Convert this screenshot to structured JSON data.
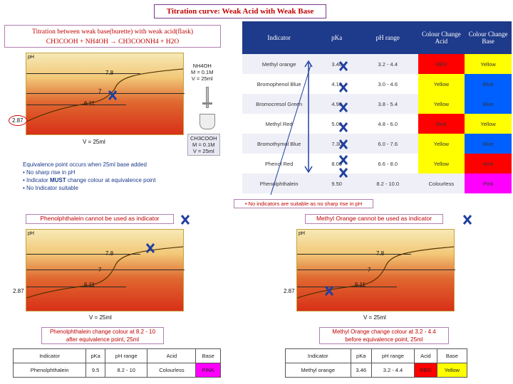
{
  "title": "Titration curve: Weak Acid with Weak Base",
  "header": {
    "line1": "Titration between weak base(burette) with weak acid(flask)",
    "line2": "CH3COOH + NH4OH → CH3COONH4 + H2O"
  },
  "top_graph": {
    "ylabel": "pH",
    "labels": {
      "v78": "7.8",
      "v7": "7",
      "v611": "6.11",
      "v287": "2.87"
    },
    "vol_label": "V = 25ml",
    "base_info": [
      "NH4OH",
      "M = 0.1M",
      "V = 25ml"
    ],
    "acid_info": [
      "CH3COOH",
      "M = 0.1M",
      "V = 25ml"
    ]
  },
  "equivalence": {
    "line1": "Equivalence point occurs when 25ml base added",
    "line2": "• No sharp rise in pH",
    "line3_pre": "• Indicator ",
    "line3_bold": "MUST",
    "line3_post": " change colour at equivalence point",
    "line4": "• No Indicator suitable"
  },
  "table": {
    "headers": [
      "Indicator",
      "pKa",
      "pH range",
      "Colour Change Acid",
      "Colour Change Base"
    ],
    "rows": [
      [
        "Methyl orange",
        "3.46",
        "3.2 - 4.4",
        "RED",
        "Yellow"
      ],
      [
        "Bromophenol Blue",
        "4.10",
        "3.0 - 4.6",
        "Yellow",
        "Blue"
      ],
      [
        "Bromocresol Green",
        "4.90",
        "3.8 - 5.4",
        "Yellow",
        "Blue"
      ],
      [
        "Methyl Red",
        "5.00",
        "4.8 - 6.0",
        "Red",
        "Yellow"
      ],
      [
        "Bromothymol Blue",
        "7.30",
        "6.0 - 7.6",
        "Yellow",
        "Blue"
      ],
      [
        "Phenol Red",
        "8.00",
        "6.6 - 8.0",
        "Yellow",
        "Red"
      ],
      [
        "Phenolphthalein",
        "9.50",
        "8.2 - 10.0",
        "Colourless",
        "Pink"
      ]
    ],
    "note": "• No indicators are suitable as no sharp rise in pH"
  },
  "left_panel": {
    "title": "Phenolphthalein cannot be used as indicator",
    "labels": {
      "v78": "7.8",
      "v7": "7",
      "v611": "6.11",
      "v287": "2.87",
      "vol": "V = 25ml"
    },
    "note1": "Phenolphthalein change colour at 8.2 - 10",
    "note2": "after equivalence point, 25ml",
    "mini_headers": [
      "Indicator",
      "pKa",
      "pH range",
      "Acid",
      "Base"
    ],
    "mini_row": [
      "Phenolphthalein",
      "9.5",
      "8.2 - 10",
      "Colourless",
      "PINK"
    ]
  },
  "right_panel": {
    "title": "Methyl Orange cannot be used as indicator",
    "labels": {
      "v78": "7.8",
      "v7": "7",
      "v611": "6.11",
      "v287": "2.87",
      "vol": "V = 25ml"
    },
    "note1": "Methyl Orange change colour at 3.2 - 4.4",
    "note2": "before equivalence point, 25ml",
    "mini_headers": [
      "Indicator",
      "pKa",
      "pH range",
      "Acid",
      "Base"
    ],
    "mini_row": [
      "Methyl orange",
      "3.46",
      "3.2 - 4.4",
      "RED",
      "Yellow"
    ]
  },
  "colors": {
    "red": "#ff0000",
    "yellow": "#ffff00",
    "blue": "#0060ff",
    "pink": "#ff00ff",
    "accent": "#c00000"
  }
}
